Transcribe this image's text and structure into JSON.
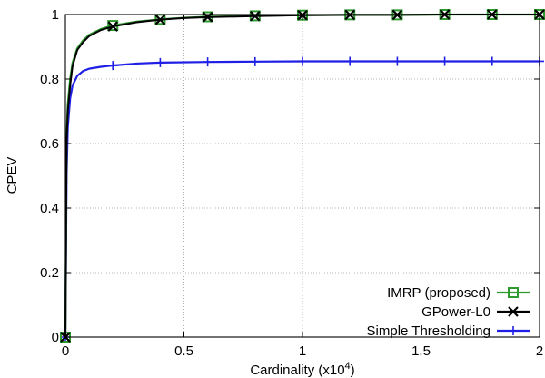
{
  "chart_data": {
    "type": "line",
    "xlabel": "Cardinality (x10",
    "xlabel_sup": "4",
    "xlabel_close": ")",
    "ylabel": "CPEV",
    "xlim": [
      0,
      2
    ],
    "ylim": [
      0,
      1
    ],
    "x_ticks": [
      0,
      0.5,
      1,
      1.5,
      2
    ],
    "x_tick_labels": [
      "0",
      "0.5",
      "1",
      "1.5",
      "2"
    ],
    "y_ticks": [
      0,
      0.2,
      0.4,
      0.6,
      0.8,
      1
    ],
    "y_tick_labels": [
      "0",
      "0.2",
      "0.4",
      "0.6",
      "0.8",
      "1"
    ],
    "grid": true,
    "legend_position": "bottom-right",
    "series": [
      {
        "name": "IMRP (proposed)",
        "color": "#2e9a2e",
        "marker": "square",
        "x": [
          0,
          0.005,
          0.01,
          0.02,
          0.03,
          0.05,
          0.075,
          0.1,
          0.15,
          0.2,
          0.3,
          0.4,
          0.5,
          0.6,
          0.8,
          1.0,
          1.2,
          1.4,
          1.6,
          1.8,
          2.0
        ],
        "y": [
          0,
          0.62,
          0.72,
          0.8,
          0.85,
          0.895,
          0.92,
          0.937,
          0.955,
          0.966,
          0.978,
          0.985,
          0.99,
          0.993,
          0.996,
          0.998,
          0.999,
          0.999,
          1.0,
          1.0,
          1.0
        ],
        "marker_x": [
          0,
          0.2,
          0.4,
          0.6,
          0.8,
          1.0,
          1.2,
          1.4,
          1.6,
          1.8,
          2.0
        ]
      },
      {
        "name": "GPower-L0",
        "color": "#000000",
        "marker": "x",
        "x": [
          0,
          0.005,
          0.01,
          0.02,
          0.03,
          0.05,
          0.075,
          0.1,
          0.15,
          0.2,
          0.3,
          0.4,
          0.5,
          0.6,
          0.8,
          1.0,
          1.2,
          1.4,
          1.6,
          1.8,
          2.0
        ],
        "y": [
          0,
          0.6,
          0.7,
          0.78,
          0.84,
          0.89,
          0.915,
          0.933,
          0.952,
          0.963,
          0.976,
          0.984,
          0.989,
          0.992,
          0.995,
          0.998,
          0.999,
          0.999,
          1.0,
          1.0,
          1.0
        ],
        "marker_x": [
          0,
          0.2,
          0.4,
          0.6,
          0.8,
          1.0,
          1.2,
          1.4,
          1.6,
          1.8,
          2.0
        ]
      },
      {
        "name": "Simple Thresholding",
        "color": "#1f1fe6",
        "marker": "plus",
        "x": [
          0,
          0.005,
          0.01,
          0.02,
          0.03,
          0.05,
          0.075,
          0.1,
          0.15,
          0.2,
          0.3,
          0.4,
          0.6,
          0.8,
          1.0,
          1.2,
          1.4,
          1.6,
          1.8,
          2.0
        ],
        "y": [
          0,
          0.5,
          0.65,
          0.74,
          0.78,
          0.81,
          0.825,
          0.832,
          0.838,
          0.842,
          0.848,
          0.851,
          0.853,
          0.854,
          0.855,
          0.855,
          0.855,
          0.855,
          0.855,
          0.855
        ],
        "marker_x": [
          0,
          0.2,
          0.4,
          0.6,
          0.8,
          1.0,
          1.2,
          1.4,
          1.6,
          1.8,
          2.0
        ]
      }
    ]
  }
}
